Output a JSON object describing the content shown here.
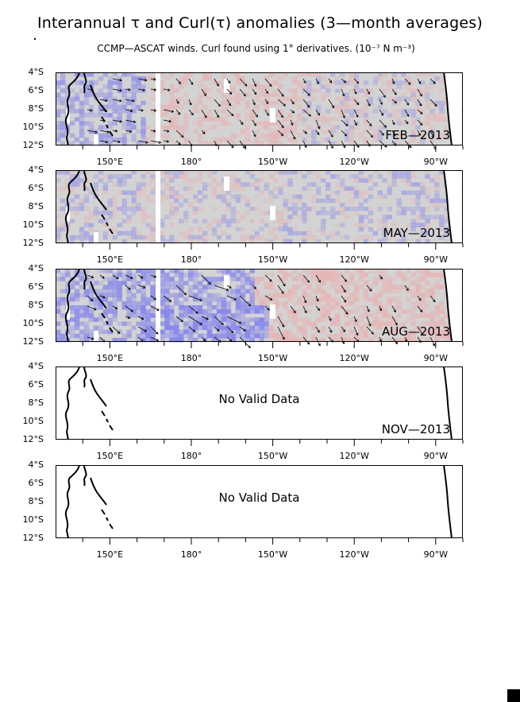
{
  "title": "Interannual τ and Curl(τ) anomalies (3—month averages)",
  "subtitle": "CCMP—ASCAT winds. Curl found using 1° derivatives. (10⁻⁷ N m⁻³)",
  "chart_data": {
    "type": "heatmap",
    "x_axis": {
      "ticks": [
        "150°E",
        "180°",
        "150°W",
        "120°W",
        "90°W"
      ],
      "range_deg": [
        130,
        280
      ]
    },
    "y_axis": {
      "ticks": [
        "4°S",
        "6°S",
        "8°S",
        "10°S",
        "12°S"
      ],
      "range_deg": [
        -4,
        -12
      ]
    },
    "colors": {
      "positive": "#f0a8a8",
      "negative": "#7c7cf0",
      "neutral": "#d3d3d3",
      "missing": "#ffffff"
    },
    "panels": [
      {
        "label": "FEB—2013",
        "valid": true,
        "anomaly": "mixed"
      },
      {
        "label": "MAY—2013",
        "valid": true,
        "anomaly": "weak"
      },
      {
        "label": "AUG—2013",
        "valid": true,
        "anomaly": "strong"
      },
      {
        "label": "NOV—2013",
        "valid": false,
        "message": "No Valid Data"
      },
      {
        "label": "",
        "valid": false,
        "message": "No Valid Data"
      }
    ]
  }
}
